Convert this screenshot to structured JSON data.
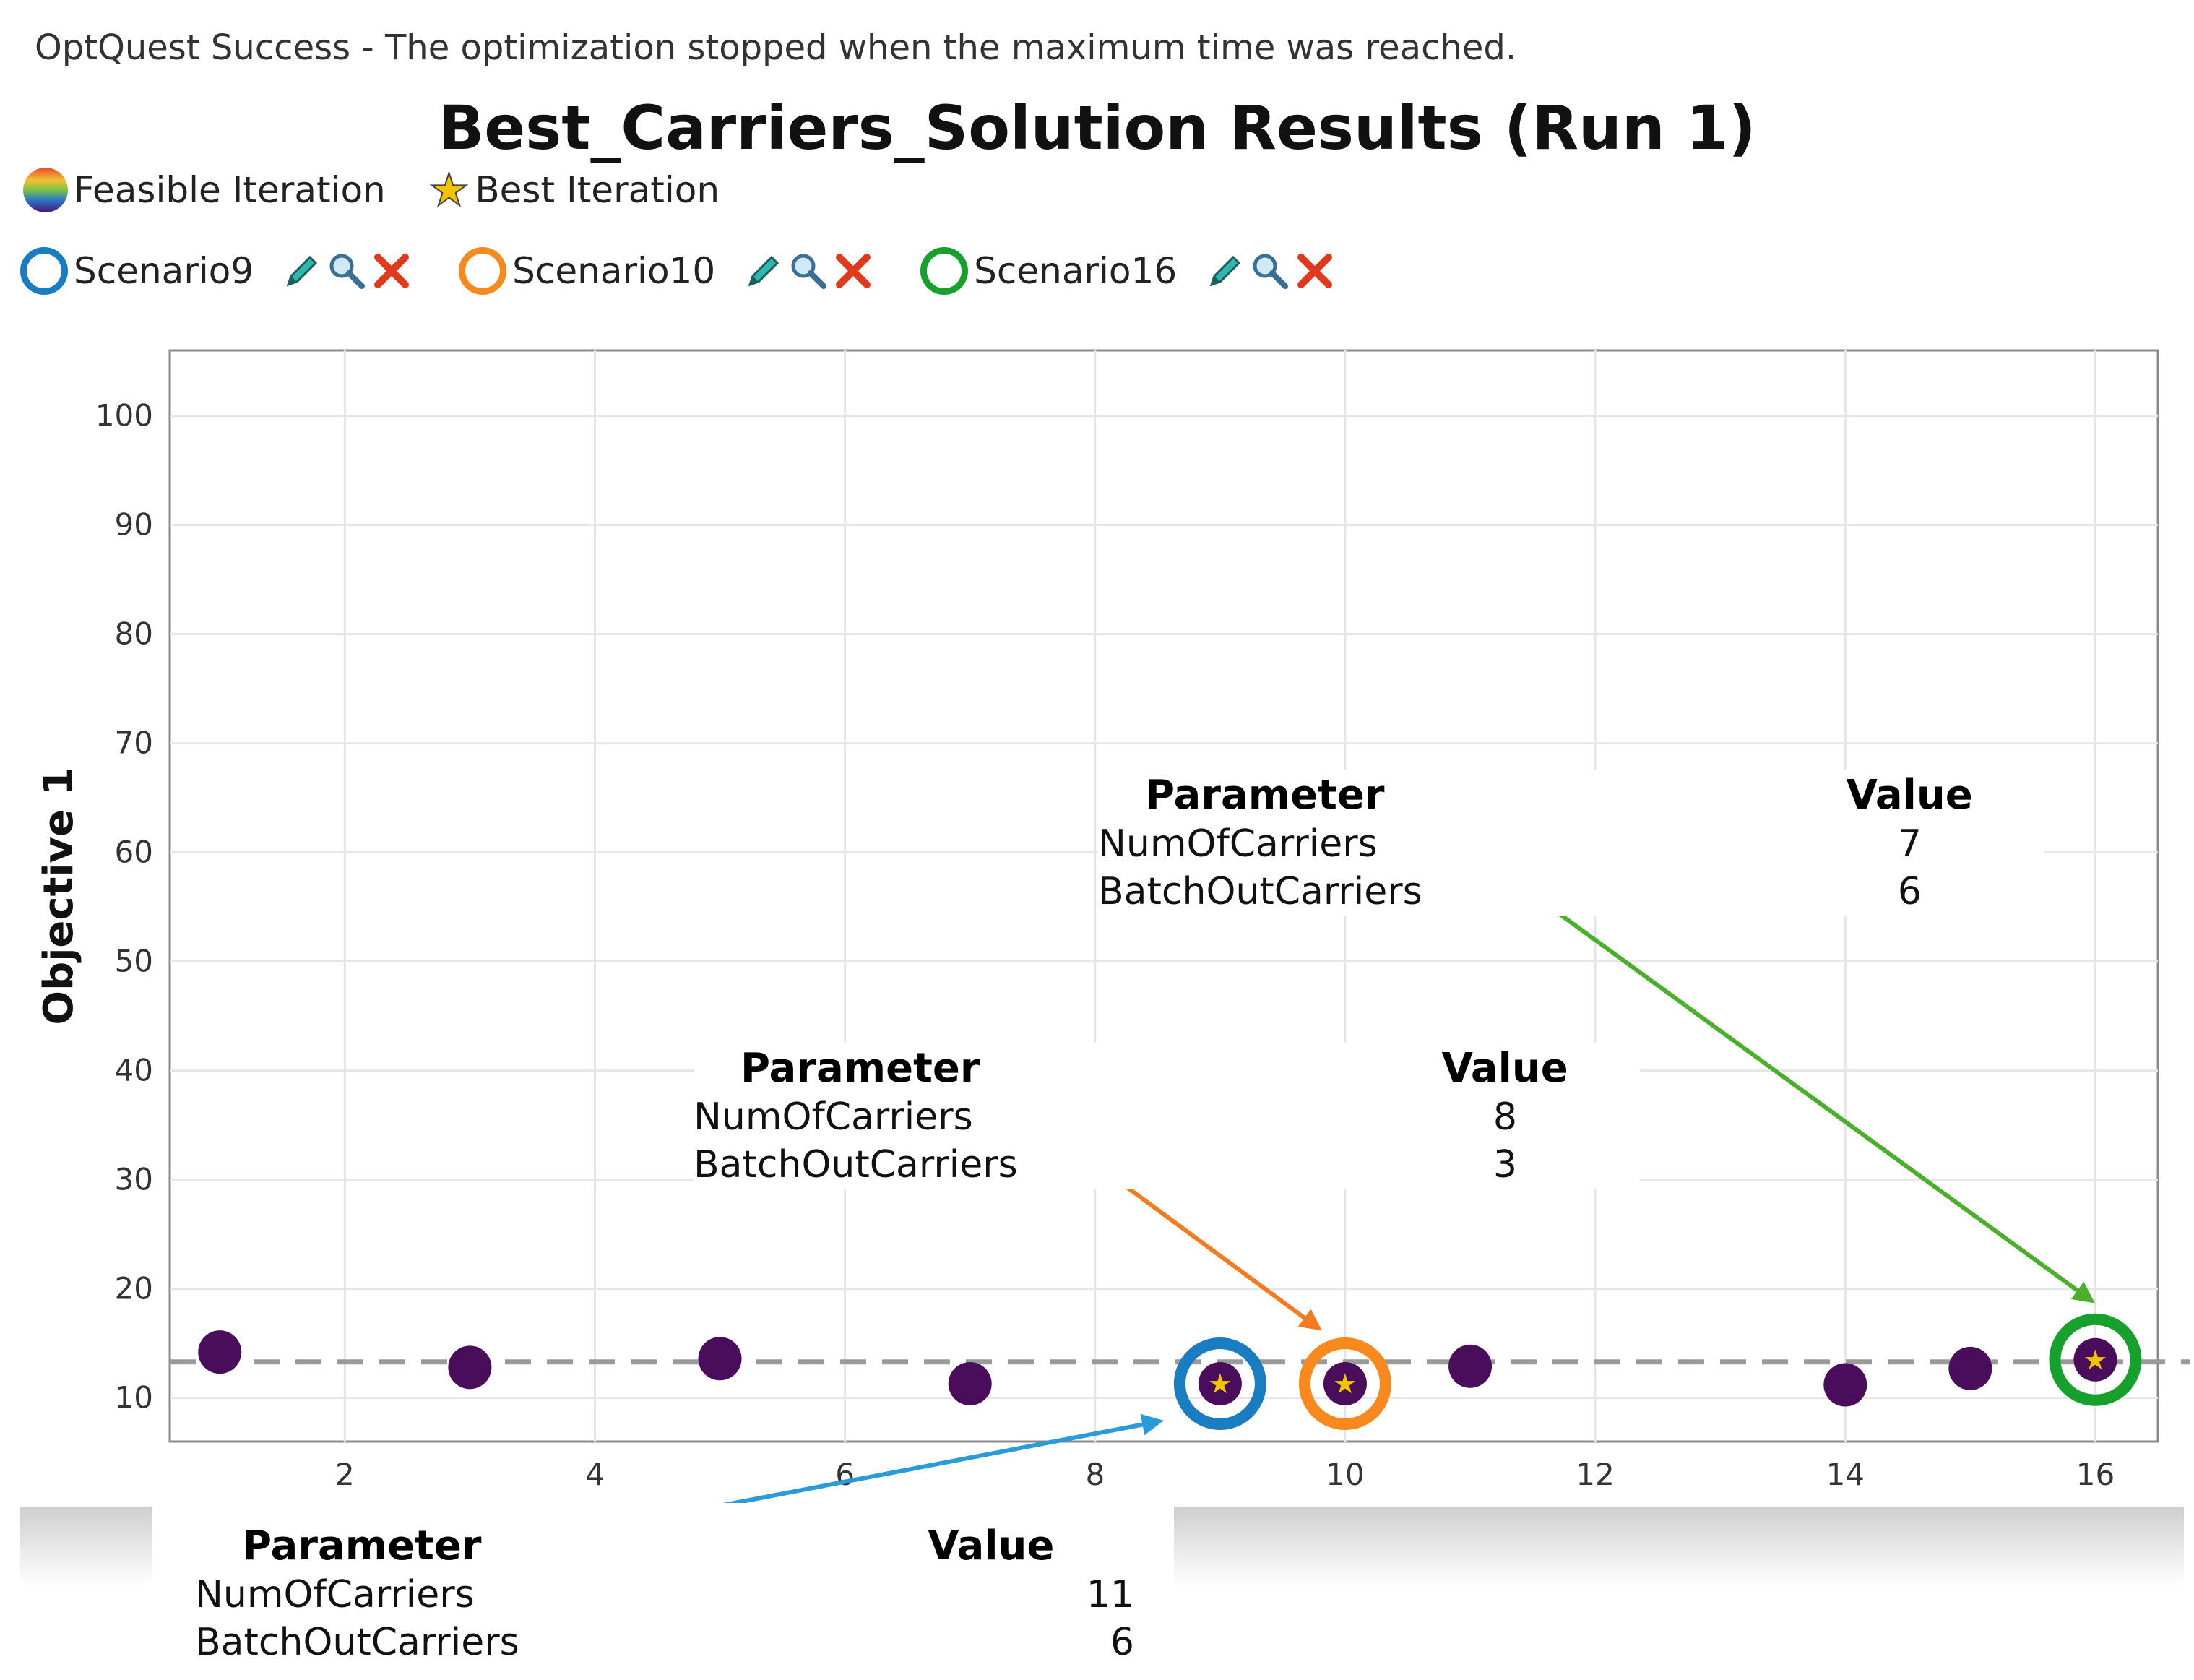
{
  "status_message": "OptQuest Success - The optimization stopped when the maximum time was reached.",
  "legend": {
    "feasible_label": "Feasible Iteration",
    "best_label": "Best Iteration"
  },
  "scenarios": [
    {
      "label": "Scenario9",
      "color": "#1a7cc1"
    },
    {
      "label": "Scenario10",
      "color": "#f7891f"
    },
    {
      "label": "Scenario16",
      "color": "#18a02c"
    }
  ],
  "callouts": {
    "scenario16": {
      "header_param": "Parameter",
      "header_value": "Value",
      "rows": [
        {
          "name": "NumOfCarriers",
          "value": "7"
        },
        {
          "name": "BatchOutCarriers",
          "value": "6"
        }
      ]
    },
    "scenario10": {
      "header_param": "Parameter",
      "header_value": "Value",
      "rows": [
        {
          "name": "NumOfCarriers",
          "value": "8"
        },
        {
          "name": "BatchOutCarriers",
          "value": "3"
        }
      ]
    },
    "scenario9": {
      "header_param": "Parameter",
      "header_value": "Value",
      "rows": [
        {
          "name": "NumOfCarriers",
          "value": "11"
        },
        {
          "name": "BatchOutCarriers",
          "value": "6"
        }
      ]
    }
  },
  "chart_data": {
    "type": "scatter",
    "title": "Best_Carriers_Solution Results (Run 1)",
    "ylabel": "Objective 1",
    "xlabel": "",
    "xlim": [
      0.6,
      16.5
    ],
    "ylim": [
      6,
      106
    ],
    "x_ticks": [
      2,
      4,
      6,
      8,
      10,
      12,
      14,
      16
    ],
    "y_ticks": [
      10,
      20,
      30,
      40,
      50,
      60,
      70,
      80,
      90,
      100
    ],
    "grid": true,
    "point_color": "#4a0d5c",
    "best_line": {
      "y": 13.3,
      "style": "dashed",
      "color": "#9a9a9a"
    },
    "points": [
      {
        "x": 1,
        "y": 14.2
      },
      {
        "x": 3,
        "y": 12.8
      },
      {
        "x": 5,
        "y": 13.6
      },
      {
        "x": 7,
        "y": 11.3
      },
      {
        "x": 9,
        "y": 11.3,
        "best": true,
        "scenario": "Scenario9"
      },
      {
        "x": 10,
        "y": 11.3,
        "best": true,
        "scenario": "Scenario10"
      },
      {
        "x": 11,
        "y": 12.9
      },
      {
        "x": 14,
        "y": 11.2
      },
      {
        "x": 15,
        "y": 12.7
      },
      {
        "x": 16,
        "y": 13.5,
        "best": true,
        "scenario": "Scenario16"
      }
    ]
  }
}
